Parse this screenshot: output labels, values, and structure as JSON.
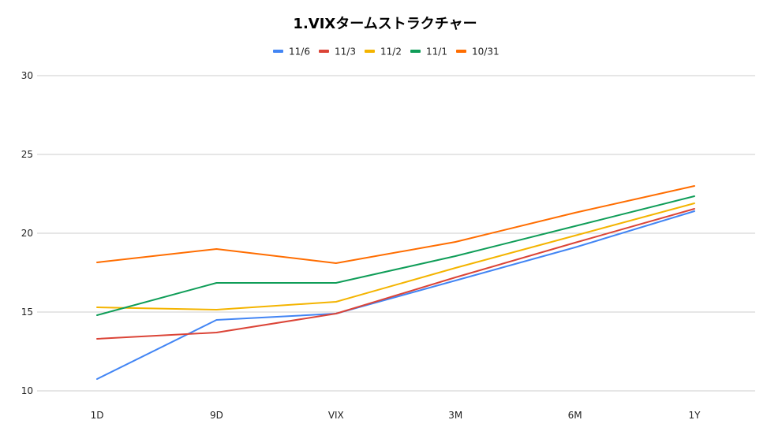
{
  "chart_data": {
    "type": "line",
    "title": "1.VIXタームストラクチャー",
    "xlabel": "",
    "ylabel": "",
    "categories": [
      "1D",
      "9D",
      "VIX",
      "3M",
      "6M",
      "1Y"
    ],
    "ylim": [
      10,
      30
    ],
    "yticks": [
      10,
      15,
      20,
      25,
      30
    ],
    "grid": true,
    "legend_position": "top",
    "series": [
      {
        "name": "11/6",
        "color": "#4285f4",
        "values": [
          10.75,
          14.5,
          14.9,
          17.0,
          19.1,
          21.4
        ]
      },
      {
        "name": "11/3",
        "color": "#db4437",
        "values": [
          13.3,
          13.7,
          14.9,
          17.2,
          19.4,
          21.55
        ]
      },
      {
        "name": "11/2",
        "color": "#f4b400",
        "values": [
          15.3,
          15.15,
          15.65,
          17.8,
          19.85,
          21.9
        ]
      },
      {
        "name": "11/1",
        "color": "#0f9d58",
        "values": [
          14.8,
          16.85,
          16.85,
          18.55,
          20.45,
          22.35
        ]
      },
      {
        "name": "10/31",
        "color": "#ff6d00",
        "values": [
          18.15,
          19.0,
          18.1,
          19.45,
          21.3,
          23.0
        ]
      }
    ]
  }
}
